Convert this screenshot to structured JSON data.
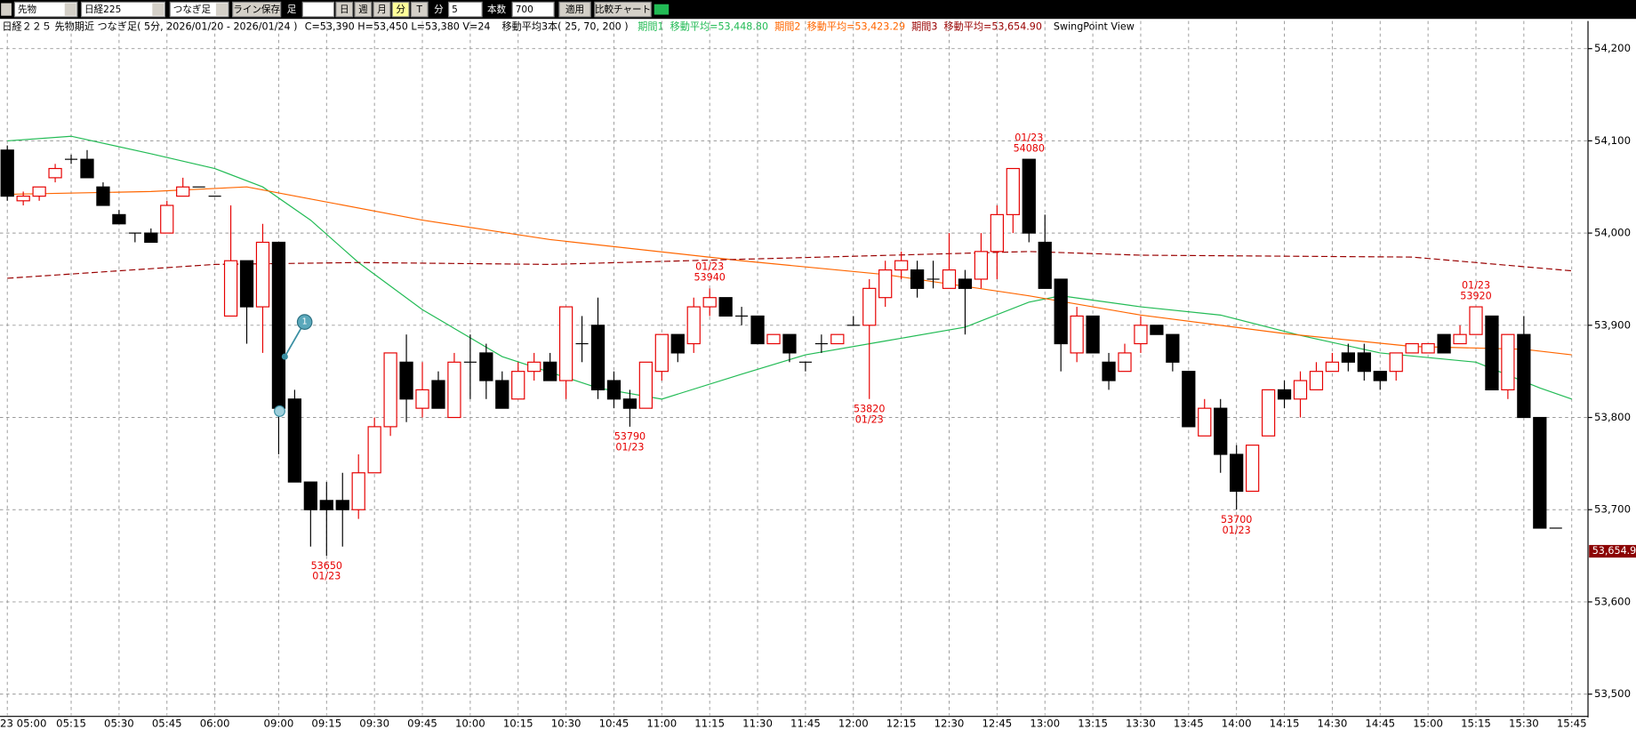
{
  "toolbar": {
    "market": "先物",
    "index": "日経225",
    "bar_type": "つなぎ足",
    "save_line": "ライン保存",
    "ashi": "足",
    "periods": [
      "日",
      "週",
      "月",
      "分",
      "T"
    ],
    "unit": "分",
    "interval": "5",
    "count_label": "本数",
    "count": "700",
    "apply": "適用",
    "compare": "比較チャート"
  },
  "chart_data": {
    "type": "candlestick",
    "title": "日経２２５ 先物期近 つなぎ足( 5分, 2026/01/20 - 2026/01/24 )",
    "ohlcv": "C=53,390 H=53,450 L=53,380 V=24",
    "ma_title": "移動平均3本( 25, 70, 200 )",
    "swingpoint": "SwingPoint View",
    "drawing_label": "1",
    "ylim": [
      53477,
      54230
    ],
    "yticks": [
      {
        "value": 53500,
        "label": "53,500"
      },
      {
        "value": 53600,
        "label": "53,600"
      },
      {
        "value": 53700,
        "label": "53,700"
      },
      {
        "value": 53800,
        "label": "53,800"
      },
      {
        "value": 53900,
        "label": "53,900"
      },
      {
        "value": 54000,
        "label": "54,000"
      },
      {
        "value": 54100,
        "label": "54,100"
      },
      {
        "value": 54200,
        "label": "54,200"
      }
    ],
    "grid": true,
    "up_color": "#e60000",
    "down_color": "#000000",
    "last_marker": {
      "value": 53654.9,
      "label": "53,654.9",
      "color": "#8b0000"
    },
    "categories": [
      "23 05:00",
      null,
      null,
      null,
      "05:15",
      null,
      null,
      "05:30",
      null,
      null,
      "05:45",
      null,
      null,
      "06:00",
      null,
      null,
      null,
      "09:00",
      null,
      null,
      "09:15",
      null,
      null,
      "09:30",
      null,
      null,
      "09:45",
      null,
      null,
      "10:00",
      null,
      null,
      "10:15",
      null,
      null,
      "10:30",
      null,
      null,
      "10:45",
      null,
      null,
      "11:00",
      null,
      null,
      "11:15",
      null,
      null,
      "11:30",
      null,
      null,
      "11:45",
      null,
      null,
      "12:00",
      null,
      null,
      "12:15",
      null,
      null,
      "12:30",
      null,
      null,
      "12:45",
      null,
      null,
      "13:00",
      null,
      null,
      "13:15",
      null,
      null,
      "13:30",
      null,
      null,
      "13:45",
      null,
      null,
      "14:00",
      null,
      null,
      "14:15",
      null,
      null,
      "14:30",
      null,
      null,
      "14:45",
      null,
      null,
      "15:00",
      null,
      null,
      "15:15",
      null,
      null,
      "15:30",
      null,
      null,
      "15:45"
    ],
    "candles": [
      {
        "o": 54090,
        "h": 54095,
        "l": 54035,
        "c": 54040
      },
      {
        "o": 54035,
        "h": 54045,
        "l": 54030,
        "c": 54040
      },
      {
        "o": 54040,
        "h": 54050,
        "l": 54035,
        "c": 54050
      },
      {
        "o": 54060,
        "h": 54075,
        "l": 54055,
        "c": 54070
      },
      {
        "o": 54080,
        "h": 54085,
        "l": 54075,
        "c": 54080
      },
      {
        "o": 54080,
        "h": 54090,
        "l": 54060,
        "c": 54060
      },
      {
        "o": 54050,
        "h": 54055,
        "l": 54030,
        "c": 54030
      },
      {
        "o": 54020,
        "h": 54025,
        "l": 54010,
        "c": 54010
      },
      {
        "o": 54000,
        "h": 54000,
        "l": 53990,
        "c": 54000
      },
      {
        "o": 54000,
        "h": 54005,
        "l": 53990,
        "c": 53990
      },
      {
        "o": 54000,
        "h": 54035,
        "l": 54000,
        "c": 54030
      },
      {
        "o": 54040,
        "h": 54060,
        "l": 54040,
        "c": 54050
      },
      {
        "o": 54050,
        "h": 54050,
        "l": 54050,
        "c": 54050
      },
      {
        "o": 54040,
        "h": 54040,
        "l": 54040,
        "c": 54040
      },
      {
        "o": 53910,
        "h": 54030,
        "l": 53910,
        "c": 53970
      },
      {
        "o": 53970,
        "h": 53970,
        "l": 53880,
        "c": 53920
      },
      {
        "o": 53920,
        "h": 54010,
        "l": 53870,
        "c": 53990
      },
      {
        "o": 53990,
        "h": 53990,
        "l": 53760,
        "c": 53810
      },
      {
        "o": 53820,
        "h": 53830,
        "l": 53730,
        "c": 53730
      },
      {
        "o": 53730,
        "h": 53730,
        "l": 53660,
        "c": 53700
      },
      {
        "o": 53710,
        "h": 53730,
        "l": 53650,
        "c": 53700,
        "swing": "low",
        "swing_date": "01/23"
      },
      {
        "o": 53710,
        "h": 53740,
        "l": 53660,
        "c": 53700
      },
      {
        "o": 53700,
        "h": 53760,
        "l": 53690,
        "c": 53740
      },
      {
        "o": 53740,
        "h": 53800,
        "l": 53740,
        "c": 53790
      },
      {
        "o": 53790,
        "h": 53870,
        "l": 53780,
        "c": 53870
      },
      {
        "o": 53860,
        "h": 53890,
        "l": 53795,
        "c": 53820
      },
      {
        "o": 53810,
        "h": 53860,
        "l": 53800,
        "c": 53830
      },
      {
        "o": 53840,
        "h": 53850,
        "l": 53810,
        "c": 53810
      },
      {
        "o": 53800,
        "h": 53870,
        "l": 53800,
        "c": 53860
      },
      {
        "o": 53860,
        "h": 53890,
        "l": 53820,
        "c": 53860
      },
      {
        "o": 53870,
        "h": 53880,
        "l": 53820,
        "c": 53840
      },
      {
        "o": 53840,
        "h": 53850,
        "l": 53810,
        "c": 53810
      },
      {
        "o": 53820,
        "h": 53860,
        "l": 53820,
        "c": 53850
      },
      {
        "o": 53850,
        "h": 53870,
        "l": 53840,
        "c": 53860
      },
      {
        "o": 53860,
        "h": 53870,
        "l": 53840,
        "c": 53840
      },
      {
        "o": 53840,
        "h": 53920,
        "l": 53820,
        "c": 53920
      },
      {
        "o": 53880,
        "h": 53910,
        "l": 53860,
        "c": 53880
      },
      {
        "o": 53900,
        "h": 53930,
        "l": 53820,
        "c": 53830
      },
      {
        "o": 53840,
        "h": 53850,
        "l": 53810,
        "c": 53820
      },
      {
        "o": 53820,
        "h": 53830,
        "l": 53790,
        "c": 53810,
        "swing": "low",
        "swing_date": "01/23"
      },
      {
        "o": 53810,
        "h": 53860,
        "l": 53810,
        "c": 53860
      },
      {
        "o": 53850,
        "h": 53890,
        "l": 53840,
        "c": 53890
      },
      {
        "o": 53890,
        "h": 53890,
        "l": 53860,
        "c": 53870
      },
      {
        "o": 53880,
        "h": 53930,
        "l": 53870,
        "c": 53920
      },
      {
        "o": 53920,
        "h": 53940,
        "l": 53910,
        "c": 53930,
        "swing": "high",
        "swing_date": "01/23"
      },
      {
        "o": 53930,
        "h": 53930,
        "l": 53910,
        "c": 53910
      },
      {
        "o": 53910,
        "h": 53920,
        "l": 53900,
        "c": 53910
      },
      {
        "o": 53910,
        "h": 53910,
        "l": 53880,
        "c": 53880
      },
      {
        "o": 53880,
        "h": 53890,
        "l": 53880,
        "c": 53890
      },
      {
        "o": 53890,
        "h": 53890,
        "l": 53860,
        "c": 53870
      },
      {
        "o": 53860,
        "h": 53860,
        "l": 53850,
        "c": 53860
      },
      {
        "o": 53880,
        "h": 53890,
        "l": 53870,
        "c": 53880
      },
      {
        "o": 53880,
        "h": 53890,
        "l": 53880,
        "c": 53890
      },
      {
        "o": 53900,
        "h": 53910,
        "l": 53900,
        "c": 53900
      },
      {
        "o": 53900,
        "h": 53950,
        "l": 53820,
        "c": 53940,
        "swing": "low",
        "swing_date": "01/23"
      },
      {
        "o": 53930,
        "h": 53970,
        "l": 53920,
        "c": 53960
      },
      {
        "o": 53960,
        "h": 53980,
        "l": 53950,
        "c": 53970
      },
      {
        "o": 53960,
        "h": 53970,
        "l": 53930,
        "c": 53940
      },
      {
        "o": 53950,
        "h": 53970,
        "l": 53940,
        "c": 53950
      },
      {
        "o": 53940,
        "h": 54000,
        "l": 53940,
        "c": 53960
      },
      {
        "o": 53950,
        "h": 53960,
        "l": 53890,
        "c": 53940
      },
      {
        "o": 53950,
        "h": 54000,
        "l": 53940,
        "c": 53980
      },
      {
        "o": 53980,
        "h": 54030,
        "l": 53950,
        "c": 54020
      },
      {
        "o": 54020,
        "h": 54070,
        "l": 54000,
        "c": 54070
      },
      {
        "o": 54080,
        "h": 54080,
        "l": 53990,
        "c": 54000,
        "swing": "high",
        "swing_date": "01/23"
      },
      {
        "o": 53990,
        "h": 54020,
        "l": 53940,
        "c": 53940
      },
      {
        "o": 53950,
        "h": 53950,
        "l": 53850,
        "c": 53880
      },
      {
        "o": 53870,
        "h": 53920,
        "l": 53860,
        "c": 53910
      },
      {
        "o": 53910,
        "h": 53910,
        "l": 53870,
        "c": 53870
      },
      {
        "o": 53860,
        "h": 53870,
        "l": 53830,
        "c": 53840
      },
      {
        "o": 53850,
        "h": 53880,
        "l": 53850,
        "c": 53870
      },
      {
        "o": 53880,
        "h": 53910,
        "l": 53870,
        "c": 53900
      },
      {
        "o": 53900,
        "h": 53900,
        "l": 53890,
        "c": 53890
      },
      {
        "o": 53890,
        "h": 53890,
        "l": 53850,
        "c": 53860
      },
      {
        "o": 53850,
        "h": 53850,
        "l": 53790,
        "c": 53790
      },
      {
        "o": 53780,
        "h": 53820,
        "l": 53780,
        "c": 53810
      },
      {
        "o": 53810,
        "h": 53820,
        "l": 53740,
        "c": 53760
      },
      {
        "o": 53760,
        "h": 53770,
        "l": 53700,
        "c": 53720,
        "swing": "low",
        "swing_date": "01/23"
      },
      {
        "o": 53720,
        "h": 53770,
        "l": 53720,
        "c": 53770
      },
      {
        "o": 53780,
        "h": 53830,
        "l": 53780,
        "c": 53830
      },
      {
        "o": 53830,
        "h": 53840,
        "l": 53810,
        "c": 53820
      },
      {
        "o": 53820,
        "h": 53850,
        "l": 53800,
        "c": 53840
      },
      {
        "o": 53830,
        "h": 53860,
        "l": 53830,
        "c": 53850
      },
      {
        "o": 53850,
        "h": 53870,
        "l": 53850,
        "c": 53860
      },
      {
        "o": 53870,
        "h": 53880,
        "l": 53850,
        "c": 53860
      },
      {
        "o": 53870,
        "h": 53880,
        "l": 53840,
        "c": 53850
      },
      {
        "o": 53850,
        "h": 53850,
        "l": 53830,
        "c": 53840
      },
      {
        "o": 53850,
        "h": 53870,
        "l": 53840,
        "c": 53870
      },
      {
        "o": 53870,
        "h": 53880,
        "l": 53870,
        "c": 53880
      },
      {
        "o": 53870,
        "h": 53880,
        "l": 53870,
        "c": 53880
      },
      {
        "o": 53890,
        "h": 53890,
        "l": 53870,
        "c": 53870
      },
      {
        "o": 53880,
        "h": 53900,
        "l": 53880,
        "c": 53890
      },
      {
        "o": 53890,
        "h": 53920,
        "l": 53890,
        "c": 53920,
        "swing": "high",
        "swing_date": "01/23"
      },
      {
        "o": 53910,
        "h": 53910,
        "l": 53830,
        "c": 53830
      },
      {
        "o": 53830,
        "h": 53890,
        "l": 53820,
        "c": 53890
      },
      {
        "o": 53890,
        "h": 53910,
        "l": 53800,
        "c": 53800
      },
      {
        "o": 53800,
        "h": 53800,
        "l": 53680,
        "c": 53680
      },
      {
        "o": 53680,
        "h": 53680,
        "l": 53680,
        "c": 53680
      },
      null
    ],
    "series": [
      {
        "name": "期間1",
        "legend_value": "移動平均=53,448.80",
        "color": "#22bb55",
        "dash": false,
        "x": [
          0,
          4,
          9,
          13,
          16,
          19,
          22,
          26,
          31,
          37,
          41,
          46,
          50,
          55,
          60,
          64,
          66,
          71,
          76,
          81,
          86,
          92,
          96,
          98
        ],
        "values": [
          54100,
          54105,
          54086,
          54070,
          54050,
          54014,
          53968,
          53917,
          53866,
          53832,
          53820,
          53847,
          53868,
          53883,
          53898,
          53925,
          53932,
          53920,
          53911,
          53889,
          53870,
          53860,
          53832,
          53820
        ]
      },
      {
        "name": "期間2",
        "legend_value": "移動平均=53,423.29",
        "color": "#ff6600",
        "dash": false,
        "x": [
          0,
          9,
          15,
          19,
          26,
          34,
          46,
          55,
          64,
          71,
          80,
          88,
          95,
          98
        ],
        "values": [
          54042,
          54045,
          54050,
          54037,
          54014,
          53993,
          53970,
          53955,
          53932,
          53911,
          53891,
          53877,
          53874,
          53868
        ]
      },
      {
        "name": "期間3",
        "legend_value": "移動平均=53,654.90",
        "color": "#990000",
        "dash": true,
        "x": [
          0,
          13,
          22,
          34,
          64,
          71,
          88,
          98
        ],
        "values": [
          53951,
          53966,
          53968,
          53966,
          53980,
          53976,
          53974,
          53959
        ]
      }
    ]
  }
}
